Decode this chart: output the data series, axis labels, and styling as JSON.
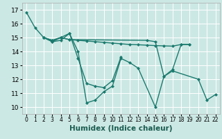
{
  "xlabel": "Humidex (Indice chaleur)",
  "bg_color": "#cce8e4",
  "grid_color": "#ffffff",
  "line_color": "#1a7a6e",
  "markersize": 2.5,
  "linewidth": 1.0,
  "line1_x": [
    0,
    1,
    2,
    3,
    4,
    5,
    6,
    7,
    8,
    9,
    10,
    11,
    12,
    13,
    15,
    16,
    17,
    20,
    21,
    22
  ],
  "line1_y": [
    16.8,
    15.7,
    15.0,
    14.7,
    14.8,
    15.3,
    14.0,
    10.3,
    10.5,
    11.1,
    11.5,
    13.5,
    13.2,
    12.8,
    10.0,
    12.2,
    12.6,
    12.0,
    10.5,
    10.9
  ],
  "line2_x": [
    2,
    3,
    4,
    5,
    6,
    7,
    8,
    9,
    10,
    11
  ],
  "line2_y": [
    15.0,
    14.7,
    15.0,
    15.3,
    13.5,
    11.7,
    11.5,
    11.4,
    11.9,
    13.6
  ],
  "line3_x": [
    2,
    3,
    4,
    5,
    6,
    7,
    8,
    9,
    10,
    11,
    12,
    13,
    14,
    15,
    16,
    17,
    18,
    19
  ],
  "line3_y": [
    15.0,
    14.8,
    15.0,
    14.85,
    14.8,
    14.75,
    14.7,
    14.65,
    14.6,
    14.55,
    14.5,
    14.48,
    14.45,
    14.42,
    14.4,
    14.38,
    14.5,
    14.5
  ],
  "line4_x": [
    2,
    3,
    4,
    5,
    14,
    15,
    16,
    17,
    18,
    19
  ],
  "line4_y": [
    15.0,
    14.8,
    15.0,
    14.85,
    14.8,
    14.7,
    12.2,
    12.7,
    14.5,
    14.5
  ],
  "xlim": [
    -0.5,
    22.5
  ],
  "ylim": [
    9.5,
    17.5
  ],
  "xticks": [
    0,
    1,
    2,
    3,
    4,
    5,
    6,
    7,
    8,
    9,
    10,
    11,
    12,
    13,
    14,
    15,
    16,
    17,
    18,
    19,
    20,
    21,
    22
  ],
  "yticks": [
    10,
    11,
    12,
    13,
    14,
    15,
    16,
    17
  ],
  "xtick_fontsize": 5.5,
  "ytick_fontsize": 6.5,
  "label_fontsize": 7.5
}
